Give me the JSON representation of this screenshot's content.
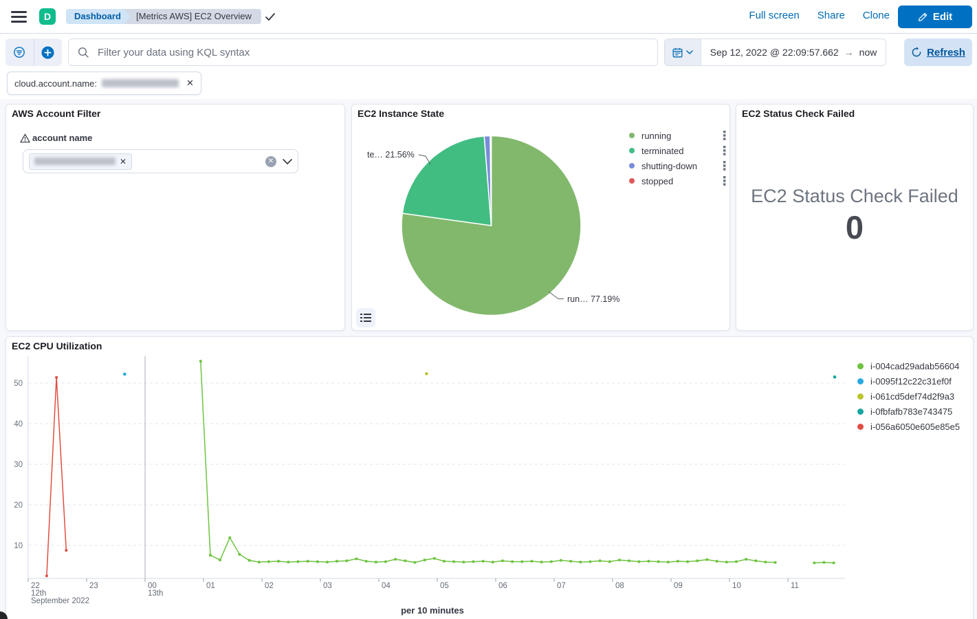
{
  "header": {
    "space_initial": "D",
    "breadcrumbs": [
      "Dashboard",
      "[Metrics AWS] EC2 Overview"
    ],
    "actions": [
      "Full screen",
      "Share",
      "Clone"
    ],
    "edit_label": "Edit"
  },
  "toolbar": {
    "search_placeholder": "Filter your data using KQL syntax",
    "date_start": "Sep 12, 2022 @ 22:09:57.662",
    "date_end": "now",
    "refresh_label": "Refresh"
  },
  "filter_pill": {
    "label": "cloud.account.name:"
  },
  "account_filter": {
    "title": "AWS Account Filter",
    "field_label": "account name"
  },
  "instance_state": {
    "title": "EC2 Instance State",
    "callouts": [
      {
        "text": "te… 21.56%"
      },
      {
        "text": "run… 77.19%"
      }
    ]
  },
  "status": {
    "title": "EC2 Status Check Failed",
    "metric_label": "EC2 Status Check Failed",
    "metric_value": "0"
  },
  "cpu": {
    "title": "EC2 CPU Utilization",
    "x_axis_title": "per 10 minutes"
  },
  "chart_data": [
    {
      "type": "pie",
      "title": "EC2 Instance State",
      "legend_position": "right",
      "slices": [
        {
          "label": "running",
          "value": 77.19,
          "color": "#82B86C"
        },
        {
          "label": "terminated",
          "value": 21.56,
          "color": "#42BD82"
        },
        {
          "label": "shutting-down",
          "value": 1.06,
          "color": "#788CDA"
        },
        {
          "label": "stopped",
          "value": 0.19,
          "color": "#E0585A"
        }
      ],
      "data_labels": [
        "te… 21.56%",
        "run… 77.19%"
      ]
    },
    {
      "type": "line",
      "title": "EC2 CPU Utilization",
      "xlabel": "per 10 minutes",
      "x_unit_minutes_from": "Sep 12, 2022 22:00",
      "x_ticks": [
        "22",
        "23",
        "00",
        "01",
        "02",
        "03",
        "04",
        "05",
        "06",
        "07",
        "08",
        "09",
        "10",
        "11"
      ],
      "x_context": {
        "first_day": "12th",
        "month": "September 2022",
        "boundary_day": "13th",
        "boundary_t": 120
      },
      "y_ticks": [
        10,
        20,
        30,
        40,
        50
      ],
      "ylim": [
        2,
        57
      ],
      "grid": true,
      "legend_position": "right",
      "series": [
        {
          "name": "i-004cad29adab56604",
          "color": "#6DC340",
          "segments": [
            [
              [
                177,
                55.4
              ],
              [
                187,
                7.6
              ],
              [
                197,
                6.4
              ],
              [
                207,
                11.9
              ],
              [
                217,
                7.8
              ],
              [
                227,
                6.3
              ],
              [
                237,
                5.9
              ],
              [
                247,
                6.0
              ],
              [
                257,
                6.1
              ],
              [
                267,
                5.9
              ],
              [
                277,
                6.0
              ],
              [
                287,
                6.1
              ],
              [
                297,
                6.0
              ],
              [
                307,
                5.9
              ],
              [
                317,
                6.1
              ],
              [
                327,
                6.2
              ],
              [
                337,
                6.7
              ],
              [
                347,
                6.1
              ],
              [
                357,
                5.9
              ],
              [
                367,
                6.0
              ],
              [
                377,
                6.6
              ],
              [
                387,
                6.2
              ],
              [
                397,
                5.8
              ],
              [
                407,
                6.4
              ],
              [
                417,
                6.8
              ],
              [
                427,
                6.1
              ],
              [
                437,
                6.0
              ],
              [
                447,
                5.9
              ],
              [
                457,
                6.0
              ],
              [
                467,
                6.1
              ],
              [
                477,
                5.9
              ],
              [
                487,
                6.2
              ],
              [
                497,
                6.0
              ],
              [
                507,
                6.0
              ],
              [
                517,
                6.1
              ],
              [
                527,
                5.9
              ],
              [
                537,
                6.0
              ],
              [
                547,
                6.3
              ],
              [
                557,
                6.1
              ],
              [
                567,
                5.9
              ],
              [
                577,
                6.0
              ],
              [
                587,
                6.2
              ],
              [
                597,
                6.0
              ],
              [
                607,
                6.4
              ],
              [
                617,
                6.2
              ],
              [
                627,
                6.0
              ],
              [
                637,
                6.1
              ],
              [
                647,
                6.0
              ],
              [
                657,
                5.9
              ],
              [
                667,
                6.1
              ],
              [
                677,
                6.0
              ],
              [
                687,
                6.2
              ],
              [
                697,
                6.5
              ],
              [
                707,
                6.1
              ],
              [
                717,
                5.9
              ],
              [
                727,
                6.0
              ],
              [
                737,
                6.6
              ],
              [
                747,
                6.2
              ],
              [
                757,
                5.9
              ],
              [
                767,
                5.8
              ]
            ],
            [
              [
                807,
                5.7
              ],
              [
                817,
                5.8
              ],
              [
                827,
                5.7
              ]
            ]
          ]
        },
        {
          "name": "i-0095f12c22c31ef0f",
          "color": "#29A8E0",
          "segments": [
            [
              [
                99,
                52.2
              ]
            ]
          ]
        },
        {
          "name": "i-061cd5def74d2f9a3",
          "color": "#BCC42E",
          "segments": [
            [
              [
                409,
                52.3
              ]
            ]
          ]
        },
        {
          "name": "i-0fbfafb783e743475",
          "color": "#16A59F",
          "segments": [
            [
              [
                828,
                51.5
              ]
            ]
          ]
        },
        {
          "name": "i-056a6050e605e85e5",
          "color": "#E04E43",
          "segments": [
            [
              [
                19,
                2.5
              ],
              [
                29,
                51.4
              ],
              [
                39,
                8.8
              ]
            ]
          ]
        }
      ]
    }
  ]
}
